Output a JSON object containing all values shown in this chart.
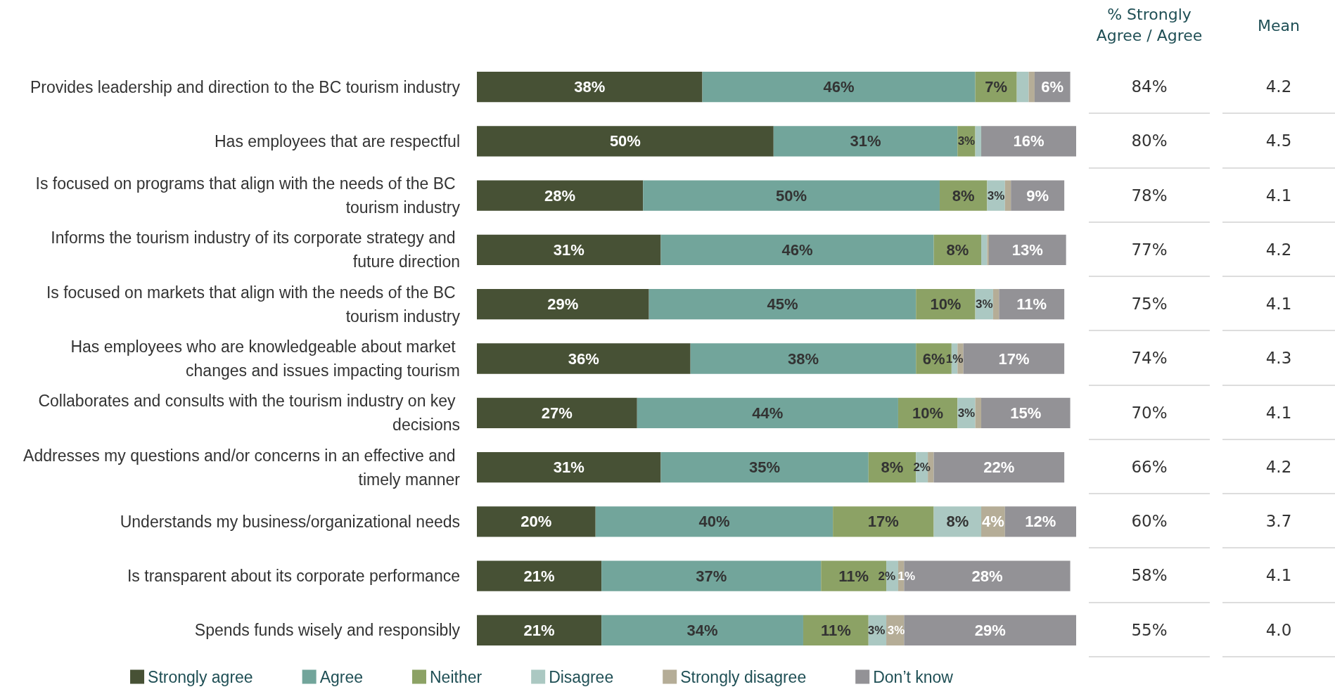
{
  "chart_data": [
    {
      "type": "bar",
      "orientation": "horizontal",
      "stacked": true,
      "xlim": [
        0,
        101
      ],
      "tick_labels": "y",
      "grid": false,
      "legend": "bottom",
      "categories": [
        "Provides leadership and direction to the BC tourism industry",
        "Has employees that are respectful",
        "Is focused on programs that align with the needs of the BC tourism industry",
        "Informs the tourism industry of its corporate strategy and future direction",
        "Is focused on markets that align with the needs of the BC tourism industry",
        "Has employees who are knowledgeable about market changes and issues impacting tourism",
        "Collaborates and consults with the tourism industry on key decisions",
        "Addresses my questions and/or concerns in an effective and timely manner",
        "Understands my business/organizational needs",
        "Is transparent about its corporate performance",
        "Spends funds wisely and responsibly"
      ],
      "series": [
        {
          "name": "Strongly agree",
          "color": "#475135",
          "values": [
            38,
            50,
            28,
            31,
            29,
            36,
            27,
            31,
            20,
            21,
            21
          ],
          "value_labels": [
            "38%",
            "50%",
            "28%",
            "31%",
            "29%",
            "36%",
            "27%",
            "31%",
            "20%",
            "21%",
            "21%"
          ]
        },
        {
          "name": "Agree",
          "color": "#72a59b",
          "values": [
            46,
            31,
            50,
            46,
            45,
            38,
            44,
            35,
            40,
            37,
            34
          ],
          "value_labels": [
            "46%",
            "31%",
            "50%",
            "46%",
            "45%",
            "38%",
            "44%",
            "35%",
            "40%",
            "37%",
            "34%"
          ]
        },
        {
          "name": "Neither",
          "color": "#8ca265",
          "values": [
            7,
            3,
            8,
            8,
            10,
            6,
            10,
            8,
            17,
            11,
            11
          ],
          "value_labels": [
            "7%",
            "3%",
            "8%",
            "8%",
            "10%",
            "6%",
            "10%",
            "8%",
            "17%",
            "11%",
            "11%"
          ]
        },
        {
          "name": "Disagree",
          "color": "#abc8c2",
          "values": [
            2,
            1,
            3,
            1,
            3,
            1,
            3,
            2,
            8,
            2,
            3
          ],
          "value_labels": [
            null,
            null,
            "3%",
            null,
            "3%",
            "1%",
            "3%",
            "2%",
            "8%",
            "2%",
            "3%"
          ]
        },
        {
          "name": "Strongly disagree",
          "color": "#b5ad97",
          "values": [
            1,
            null,
            1,
            0.3,
            1,
            1,
            1,
            1,
            4,
            1,
            3
          ],
          "value_labels": [
            null,
            null,
            null,
            null,
            null,
            null,
            null,
            null,
            "4%",
            "1%",
            "3%"
          ]
        },
        {
          "name": "Don’t know",
          "color": "#939296",
          "values": [
            6,
            16,
            9,
            13,
            11,
            17,
            15,
            22,
            12,
            28,
            29
          ],
          "value_labels": [
            "6%",
            "16%",
            "9%",
            "13%",
            "11%",
            "17%",
            "15%",
            "22%",
            "12%",
            "28%",
            "29%"
          ]
        }
      ]
    },
    {
      "type": "other",
      "title": "% Strongly Agree / Agree",
      "annotations": [
        "84%",
        "80%",
        "78%",
        "77%",
        "75%",
        "74%",
        "70%",
        "66%",
        "60%",
        "58%",
        "55%"
      ]
    },
    {
      "type": "other",
      "title": "Mean",
      "annotations": [
        "4.2",
        "4.5",
        "4.1",
        "4.2",
        "4.1",
        "4.3",
        "4.1",
        "4.2",
        "3.7",
        "4.1",
        "4.0"
      ]
    }
  ]
}
